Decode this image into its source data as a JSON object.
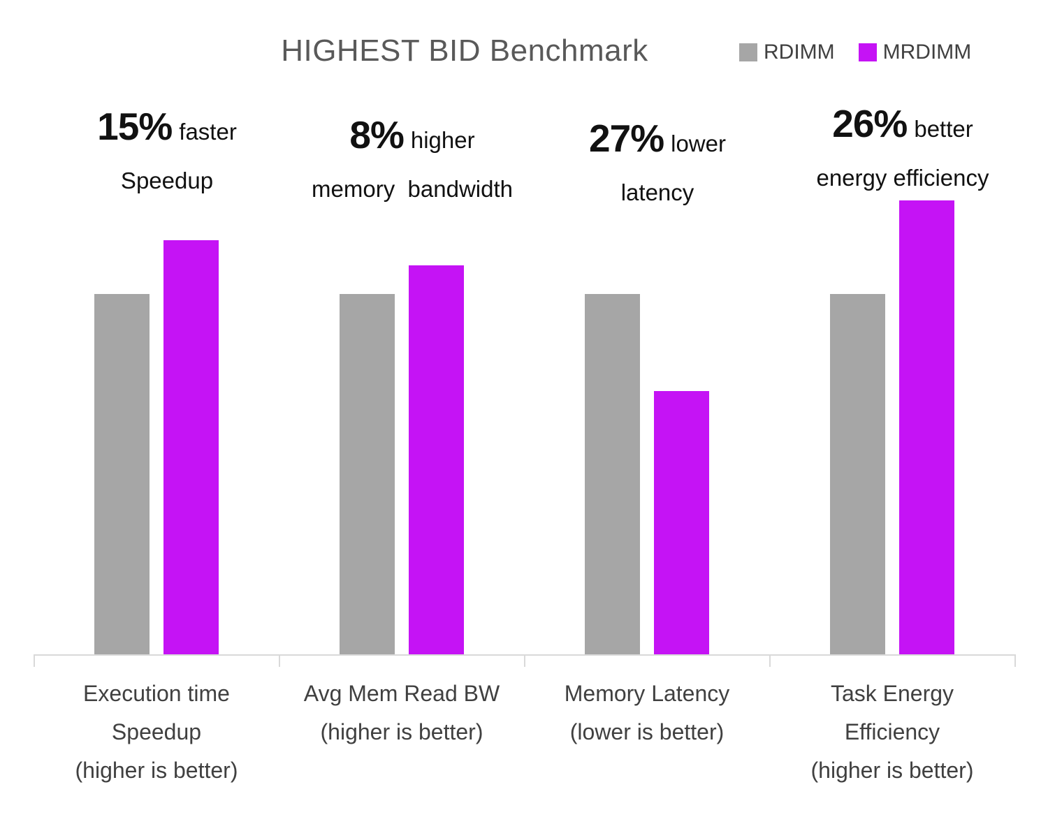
{
  "title": "HIGHEST BID Benchmark",
  "legend": {
    "items": [
      {
        "label": "RDIMM",
        "color": "#A6A6A6"
      },
      {
        "label": "MRDIMM",
        "color": "#C513F5"
      }
    ]
  },
  "colors": {
    "title_text": "#595959",
    "category_text": "#404040",
    "annotation_text": "#111111",
    "axis": "#D9D9D9",
    "rdimm_bar": "#A6A6A6",
    "mrdimm_bar": "#C513F5"
  },
  "chart_data": {
    "type": "bar",
    "title": "HIGHEST BID Benchmark",
    "grid": false,
    "legend_position": "top-right",
    "y_axis_shown": false,
    "ylim": [
      0,
      1.35
    ],
    "baseline_value": 1.0,
    "categories": [
      {
        "label_lines": [
          "Execution time",
          "Speedup",
          "(higher is better)"
        ]
      },
      {
        "label_lines": [
          "Avg Mem Read BW",
          "(higher is better)"
        ]
      },
      {
        "label_lines": [
          "Memory Latency",
          "(lower is better)"
        ]
      },
      {
        "label_lines": [
          "Task Energy",
          "Efficiency",
          "(higher is better)"
        ]
      }
    ],
    "series": [
      {
        "name": "RDIMM",
        "color": "#A6A6A6",
        "values": [
          1.0,
          1.0,
          1.0,
          1.0
        ]
      },
      {
        "name": "MRDIMM",
        "color": "#C513F5",
        "values": [
          1.15,
          1.08,
          0.73,
          1.26
        ]
      }
    ],
    "annotations": [
      {
        "number": "15%",
        "suffix": "faster",
        "line2": "Speedup"
      },
      {
        "number": "8%",
        "suffix": "higher",
        "line2": "memory  bandwidth"
      },
      {
        "number": "27%",
        "suffix": "lower",
        "line2": "latency"
      },
      {
        "number": "26%",
        "suffix": "better",
        "line2": "energy efficiency"
      }
    ]
  }
}
